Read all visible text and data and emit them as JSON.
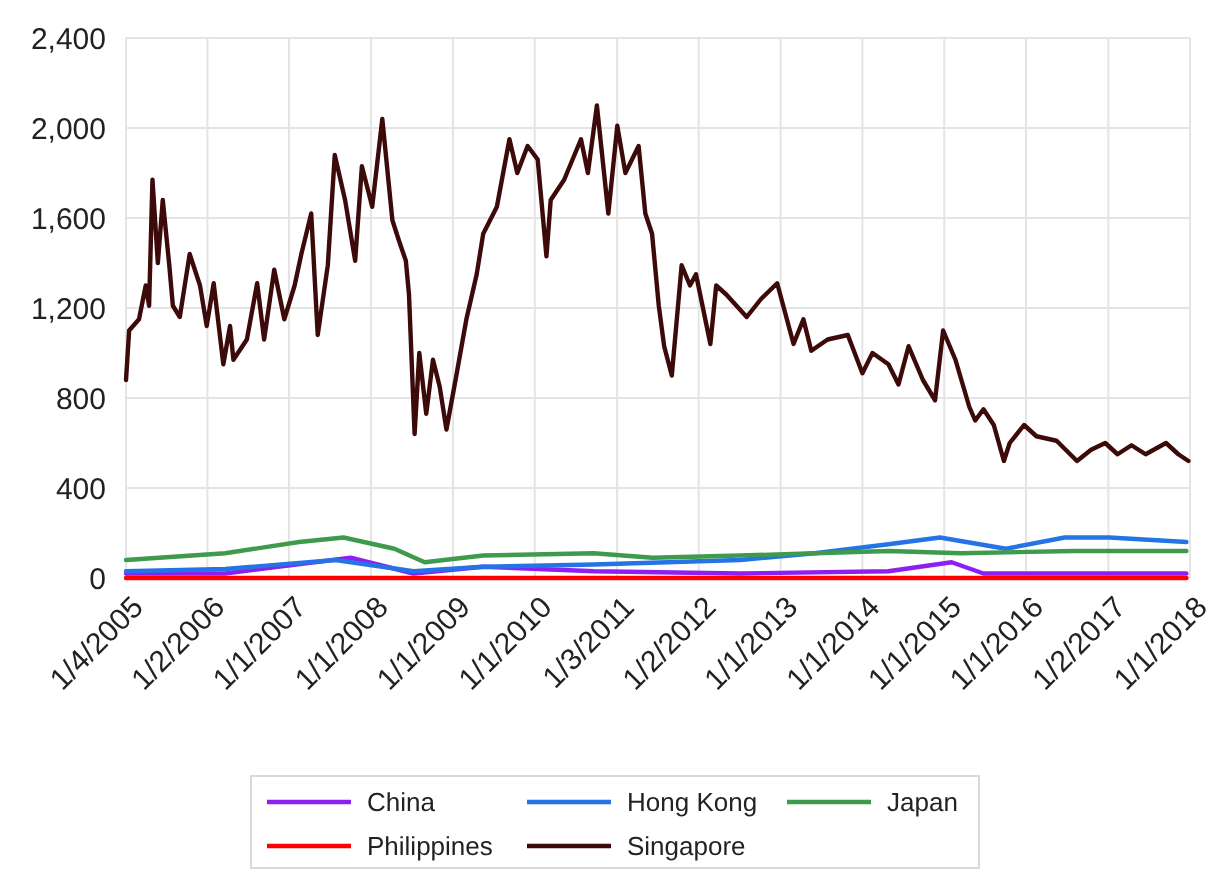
{
  "chart_data": {
    "type": "line",
    "xlim": [
      "2005-01-04",
      "2018-01-01"
    ],
    "xticks": [
      {
        "value": "2005-01-04",
        "label": "1/4/2005"
      },
      {
        "value": "2006-01-02",
        "label": "1/2/2006"
      },
      {
        "value": "2007-01-01",
        "label": "1/1/2007"
      },
      {
        "value": "2008-01-01",
        "label": "1/1/2008"
      },
      {
        "value": "2009-01-01",
        "label": "1/1/2009"
      },
      {
        "value": "2010-01-01",
        "label": "1/1/2010"
      },
      {
        "value": "2011-01-03",
        "label": "1/3/2011"
      },
      {
        "value": "2012-01-02",
        "label": "1/2/2012"
      },
      {
        "value": "2013-01-01",
        "label": "1/1/2013"
      },
      {
        "value": "2014-01-01",
        "label": "1/1/2014"
      },
      {
        "value": "2015-01-01",
        "label": "1/1/2015"
      },
      {
        "value": "2016-01-01",
        "label": "1/1/2016"
      },
      {
        "value": "2017-01-02",
        "label": "1/2/2017"
      },
      {
        "value": "2018-01-01",
        "label": "1/1/2018"
      }
    ],
    "ylim": [
      0,
      2400
    ],
    "yticks": [
      {
        "value": 0,
        "label": "0"
      },
      {
        "value": 400,
        "label": "400"
      },
      {
        "value": 800,
        "label": "800"
      },
      {
        "value": 1200,
        "label": "1,200"
      },
      {
        "value": 1600,
        "label": "1,600"
      },
      {
        "value": 2000,
        "label": "2,000"
      },
      {
        "value": 2400,
        "label": "2,400"
      }
    ],
    "grid": true,
    "legend": "bottom",
    "line_style": "solid",
    "marker": "none",
    "series": [
      {
        "name": "China",
        "color": "#8f1ff0",
        "x": [
          "2005-01-04",
          "2006-03-22",
          "2007-10-03",
          "2008-07-09",
          "2009-05-16",
          "2010-09-21",
          "2012-07-06",
          "2014-04-27",
          "2015-02-03",
          "2015-06-25",
          "2016-07-28",
          "2017-12-16"
        ],
        "values": [
          20,
          20,
          90,
          20,
          50,
          30,
          20,
          30,
          70,
          20,
          20,
          20
        ]
      },
      {
        "name": "Hong Kong",
        "color": "#2474e6",
        "x": [
          "2005-01-04",
          "2006-03-22",
          "2007-07-27",
          "2008-07-09",
          "2009-05-16",
          "2010-09-21",
          "2012-07-06",
          "2013-06-03",
          "2014-04-27",
          "2014-12-13",
          "2015-10-03",
          "2016-06-21",
          "2017-01-07",
          "2017-12-16"
        ],
        "values": [
          30,
          40,
          80,
          30,
          50,
          60,
          80,
          110,
          150,
          180,
          130,
          180,
          180,
          160
        ]
      },
      {
        "name": "Japan",
        "color": "#3e9a4c",
        "x": [
          "2005-01-04",
          "2006-03-22",
          "2007-02-15",
          "2007-09-01",
          "2008-04-15",
          "2008-08-28",
          "2009-05-16",
          "2010-09-21",
          "2011-06-10",
          "2012-07-06",
          "2013-06-03",
          "2014-04-27",
          "2015-03-18",
          "2016-07-28",
          "2017-12-01",
          "2017-12-16"
        ],
        "values": [
          80,
          110,
          160,
          180,
          130,
          70,
          100,
          110,
          90,
          100,
          110,
          120,
          110,
          120,
          120,
          120
        ]
      },
      {
        "name": "Philippines",
        "color": "#ff0000",
        "x": [
          "2005-01-04",
          "2008-01-01",
          "2011-01-03",
          "2014-01-01",
          "2017-12-16"
        ],
        "values": [
          0,
          0,
          0,
          0,
          0
        ]
      },
      {
        "name": "Singapore",
        "color": "#3d0a0a",
        "x": [
          "2005-01-04",
          "2005-01-18",
          "2005-03-03",
          "2005-04-02",
          "2005-04-17",
          "2005-05-02",
          "2005-05-26",
          "2005-06-17",
          "2005-07-16",
          "2005-08-01",
          "2005-09-01",
          "2005-10-15",
          "2005-11-30",
          "2005-12-30",
          "2006-01-30",
          "2006-03-14",
          "2006-04-13",
          "2006-04-28",
          "2006-06-27",
          "2006-08-12",
          "2006-09-12",
          "2006-10-27",
          "2006-12-11",
          "2007-01-26",
          "2007-02-25",
          "2007-04-10",
          "2007-05-09",
          "2007-06-23",
          "2007-07-24",
          "2007-09-08",
          "2007-10-23",
          "2007-11-22",
          "2008-01-07",
          "2008-02-21",
          "2008-04-06",
          "2008-05-05",
          "2008-06-05",
          "2008-06-19",
          "2008-07-14",
          "2008-08-04",
          "2008-09-04",
          "2008-10-04",
          "2008-11-03",
          "2008-12-03",
          "2009-01-18",
          "2009-03-02",
          "2009-04-17",
          "2009-05-16",
          "2009-07-16",
          "2009-09-10",
          "2009-10-15",
          "2009-11-30",
          "2010-01-14",
          "2010-02-22",
          "2010-03-13",
          "2010-05-12",
          "2010-07-26",
          "2010-08-26",
          "2010-10-05",
          "2010-11-25",
          "2011-01-04",
          "2011-02-09",
          "2011-04-09",
          "2011-05-09",
          "2011-06-08",
          "2011-07-08",
          "2011-08-01",
          "2011-09-04",
          "2011-10-18",
          "2011-11-24",
          "2011-12-21",
          "2012-02-23",
          "2012-03-20",
          "2012-05-04",
          "2012-08-03",
          "2012-10-06",
          "2012-12-17",
          "2013-02-28",
          "2013-04-13",
          "2013-05-18",
          "2013-07-30",
          "2013-10-28",
          "2014-01-01",
          "2014-02-15",
          "2014-04-27",
          "2014-06-11",
          "2014-07-26",
          "2014-09-28",
          "2014-11-21",
          "2014-12-27",
          "2015-02-20",
          "2015-04-23",
          "2015-05-19",
          "2015-06-25",
          "2015-08-10",
          "2015-09-24",
          "2015-10-20",
          "2015-12-23",
          "2016-02-16",
          "2016-05-16",
          "2016-08-15",
          "2016-10-17",
          "2016-12-19",
          "2017-02-12",
          "2017-04-15",
          "2017-06-17",
          "2017-09-16",
          "2017-11-10",
          "2017-12-25"
        ],
        "values": [
          880,
          1100,
          1150,
          1300,
          1210,
          1770,
          1400,
          1680,
          1390,
          1210,
          1160,
          1440,
          1300,
          1120,
          1310,
          950,
          1120,
          970,
          1060,
          1310,
          1060,
          1370,
          1150,
          1300,
          1440,
          1620,
          1080,
          1390,
          1880,
          1680,
          1410,
          1830,
          1650,
          2040,
          1590,
          1500,
          1410,
          1260,
          640,
          1000,
          730,
          970,
          850,
          660,
          910,
          1150,
          1350,
          1530,
          1650,
          1950,
          1800,
          1920,
          1860,
          1430,
          1680,
          1770,
          1950,
          1800,
          2100,
          1620,
          2010,
          1800,
          1920,
          1620,
          1530,
          1210,
          1030,
          900,
          1390,
          1300,
          1350,
          1040,
          1300,
          1260,
          1160,
          1240,
          1310,
          1040,
          1150,
          1010,
          1060,
          1080,
          910,
          1000,
          950,
          860,
          1030,
          880,
          790,
          1100,
          970,
          760,
          700,
          750,
          680,
          520,
          600,
          680,
          630,
          610,
          520,
          570,
          600,
          550,
          590,
          550,
          600,
          550,
          520
        ]
      }
    ]
  }
}
